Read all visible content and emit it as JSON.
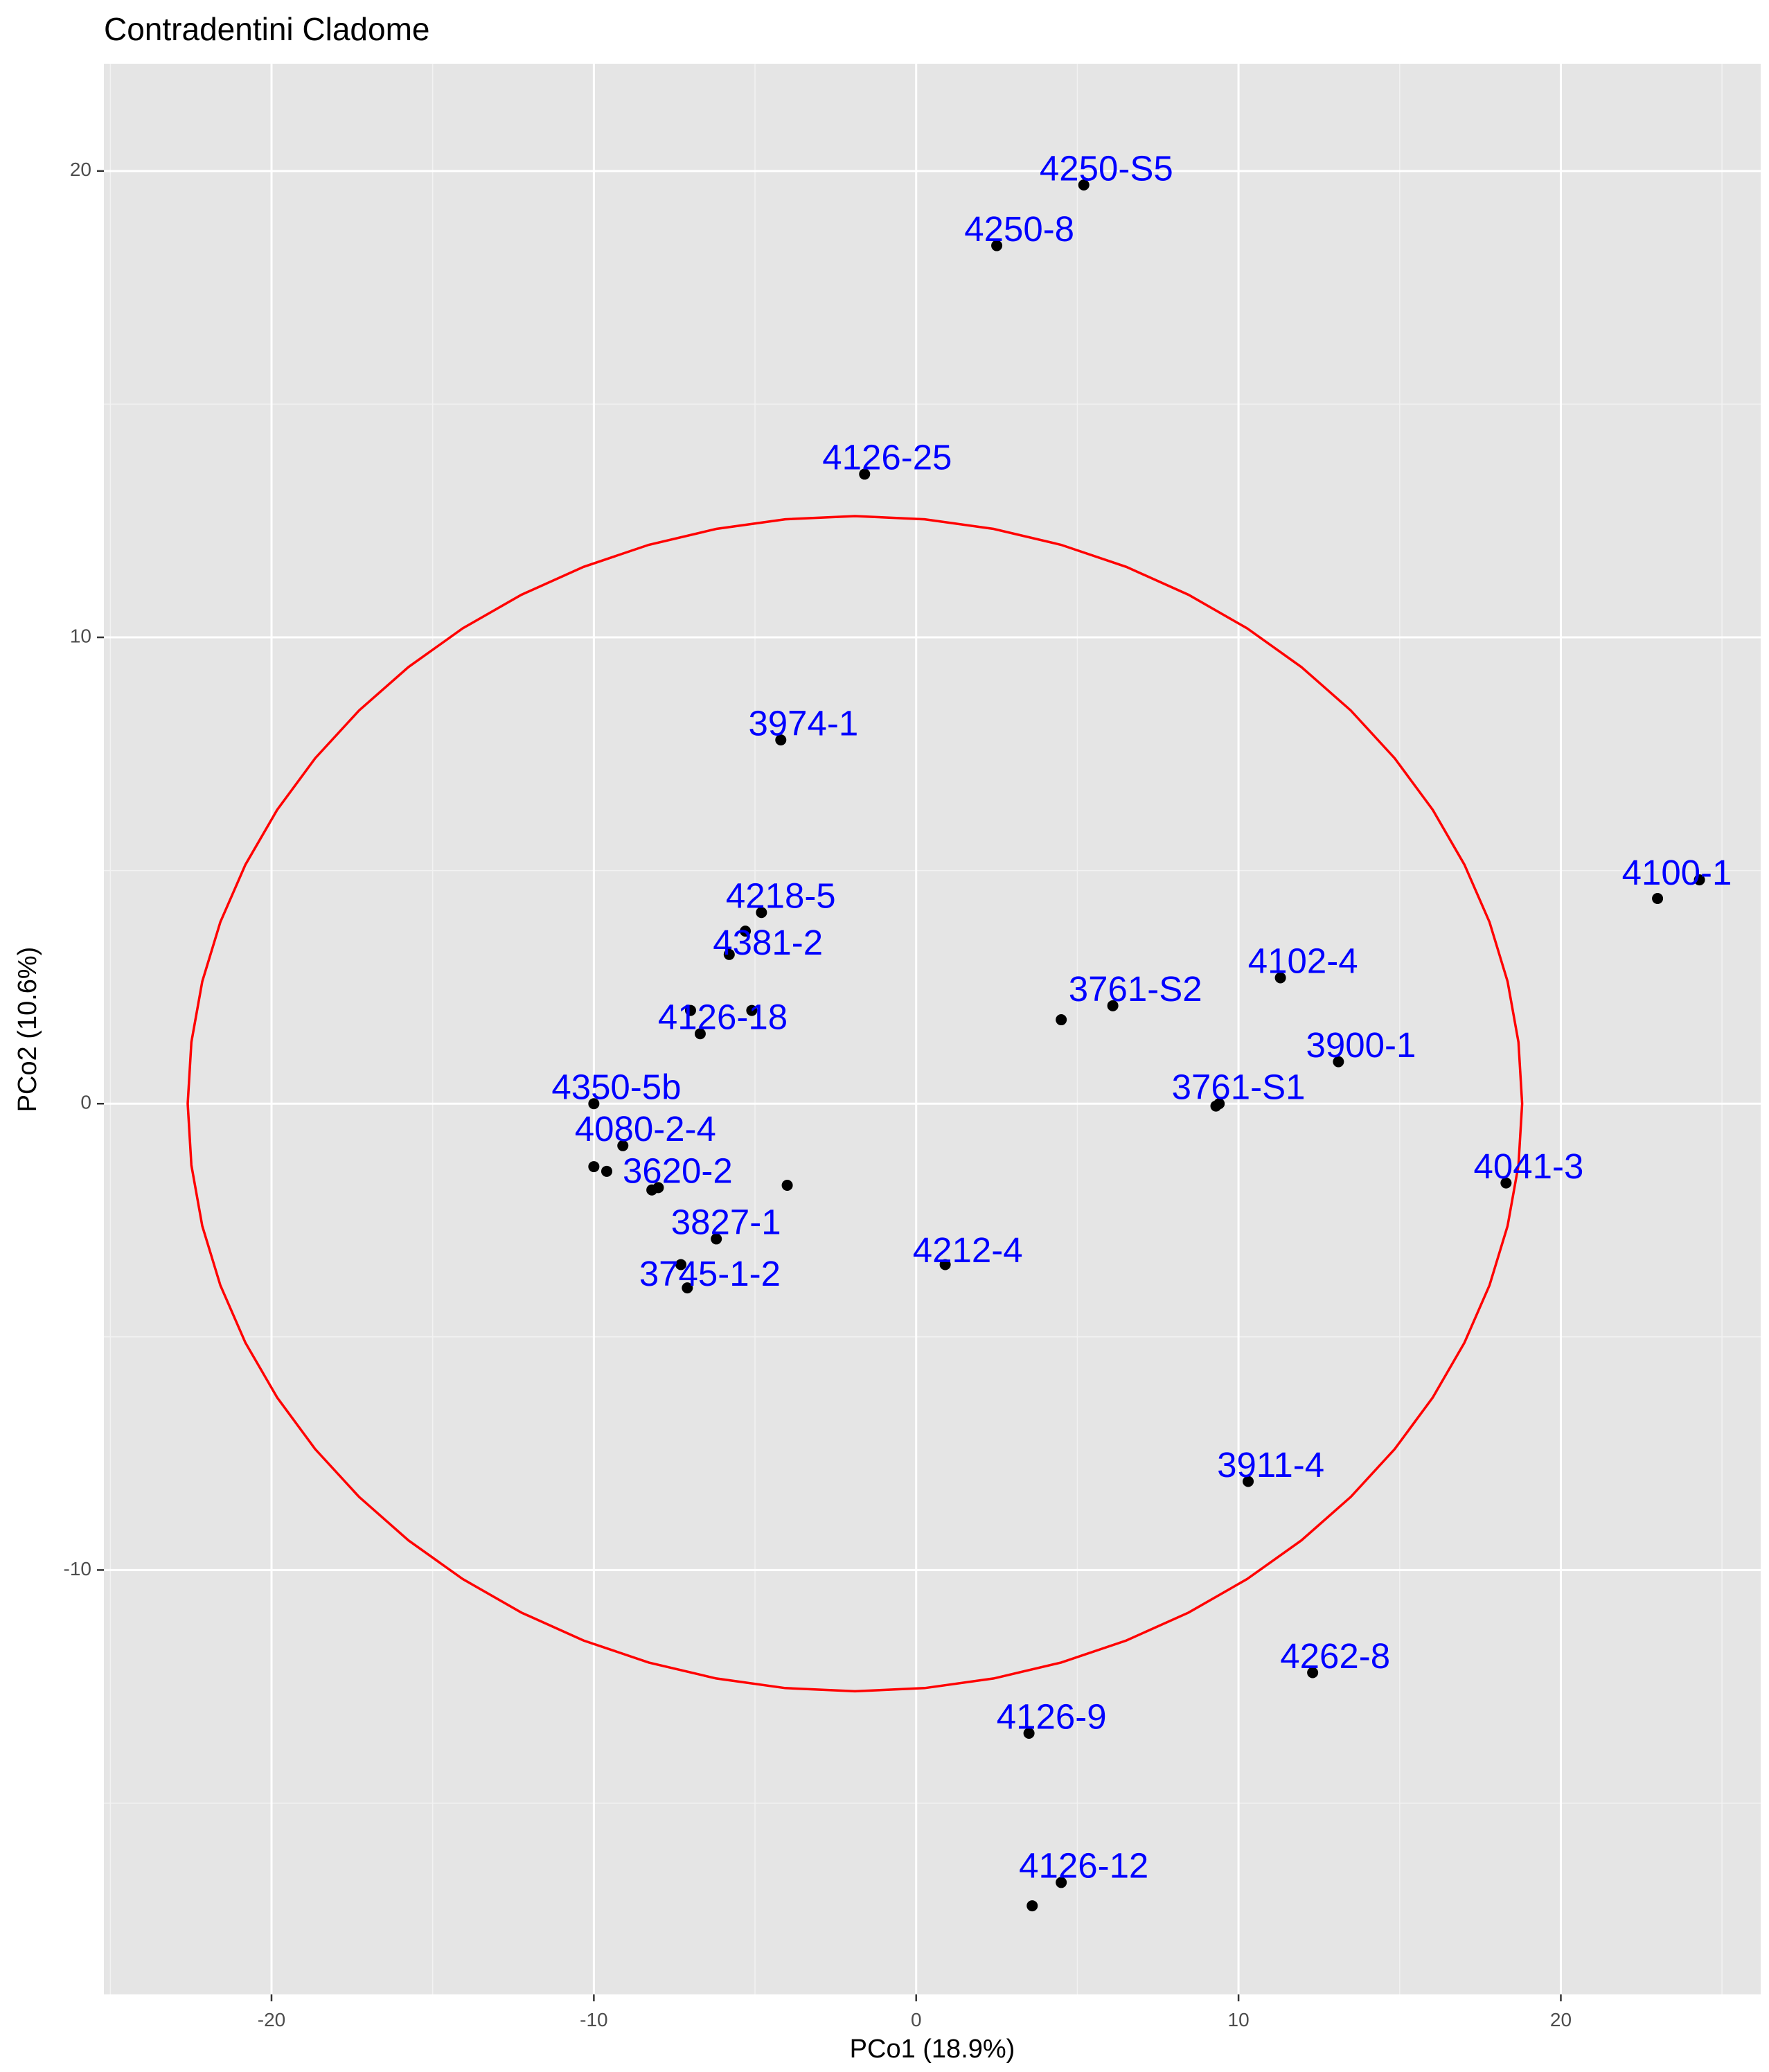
{
  "chart_data": {
    "type": "scatter",
    "title": "Contradentini Cladome",
    "xlabel": "PCo1 (18.9%)",
    "ylabel": "PCo2 (10.6%)",
    "xlim": [
      -25.2,
      26.2
    ],
    "ylim": [
      -19.1,
      22.3
    ],
    "x_ticks": [
      -20,
      -10,
      0,
      10,
      20
    ],
    "y_ticks": [
      -10,
      0,
      10,
      20
    ],
    "grid": true,
    "background": "#e5e5e5",
    "point_color": "#000000",
    "label_color": "#0000ff",
    "ellipse_color": "#ff0000",
    "points": [
      {
        "x": 5.2,
        "y": 19.7
      },
      {
        "x": 2.5,
        "y": 18.4
      },
      {
        "x": -1.6,
        "y": 13.5
      },
      {
        "x": -4.2,
        "y": 7.8
      },
      {
        "x": -4.8,
        "y": 4.1
      },
      {
        "x": -5.3,
        "y": 3.7
      },
      {
        "x": -5.8,
        "y": 3.2
      },
      {
        "x": -7.0,
        "y": 2.0
      },
      {
        "x": -5.1,
        "y": 2.0
      },
      {
        "x": -6.7,
        "y": 1.5
      },
      {
        "x": -10.0,
        "y": 0.0
      },
      {
        "x": -9.1,
        "y": -0.9
      },
      {
        "x": -10.0,
        "y": -1.35
      },
      {
        "x": -9.6,
        "y": -1.45
      },
      {
        "x": -8.2,
        "y": -1.85
      },
      {
        "x": -8.0,
        "y": -1.8
      },
      {
        "x": -4.0,
        "y": -1.75
      },
      {
        "x": -6.2,
        "y": -2.9
      },
      {
        "x": -7.3,
        "y": -3.45
      },
      {
        "x": -7.1,
        "y": -3.95
      },
      {
        "x": 0.9,
        "y": -3.45
      },
      {
        "x": 4.5,
        "y": 1.8
      },
      {
        "x": 6.1,
        "y": 2.1
      },
      {
        "x": 11.3,
        "y": 2.7
      },
      {
        "x": 13.1,
        "y": 0.9
      },
      {
        "x": 9.3,
        "y": -0.05
      },
      {
        "x": 9.4,
        "y": 0.0
      },
      {
        "x": 23.0,
        "y": 4.4
      },
      {
        "x": 24.3,
        "y": 4.8
      },
      {
        "x": 18.3,
        "y": -1.7
      },
      {
        "x": 10.3,
        "y": -8.1
      },
      {
        "x": 12.3,
        "y": -12.2
      },
      {
        "x": 3.5,
        "y": -13.5
      },
      {
        "x": 4.5,
        "y": -16.7
      },
      {
        "x": 3.6,
        "y": -17.2
      }
    ],
    "labels": [
      {
        "text": "4250-S5",
        "x": 5.9,
        "y": 20.0
      },
      {
        "text": "4250-8",
        "x": 3.2,
        "y": 18.7
      },
      {
        "text": "4126-25",
        "x": -0.9,
        "y": 13.8
      },
      {
        "text": "3974-1",
        "x": -3.5,
        "y": 8.1
      },
      {
        "text": "4218-5",
        "x": -4.2,
        "y": 4.4
      },
      {
        "text": "4381-2",
        "x": -4.6,
        "y": 3.4
      },
      {
        "text": "4126-18",
        "x": -6.0,
        "y": 1.8
      },
      {
        "text": "4350-5b",
        "x": -9.3,
        "y": 0.3
      },
      {
        "text": "4080-2-4",
        "x": -8.4,
        "y": -0.6
      },
      {
        "text": "3620-2",
        "x": -7.4,
        "y": -1.5
      },
      {
        "text": "3827-1",
        "x": -5.9,
        "y": -2.6
      },
      {
        "text": "3745-1-2",
        "x": -6.4,
        "y": -3.7
      },
      {
        "text": "4212-4",
        "x": 1.6,
        "y": -3.2
      },
      {
        "text": "3761-S2",
        "x": 6.8,
        "y": 2.4
      },
      {
        "text": "4102-4",
        "x": 12.0,
        "y": 3.0
      },
      {
        "text": "3900-1",
        "x": 13.8,
        "y": 1.2
      },
      {
        "text": "3761-S1",
        "x": 10.0,
        "y": 0.3
      },
      {
        "text": "4100-1",
        "x": 23.6,
        "y": 4.9
      },
      {
        "text": "4041-3",
        "x": 19.0,
        "y": -1.4
      },
      {
        "text": "3911-4",
        "x": 11.0,
        "y": -7.8
      },
      {
        "text": "4262-8",
        "x": 13.0,
        "y": -11.9
      },
      {
        "text": "4126-9",
        "x": 4.2,
        "y": -13.2
      },
      {
        "text": "4126-12",
        "x": 5.2,
        "y": -16.4
      }
    ],
    "ellipse": {
      "cx": -1.9,
      "cy": 0.0,
      "rx": 20.7,
      "ry": 12.6
    }
  }
}
